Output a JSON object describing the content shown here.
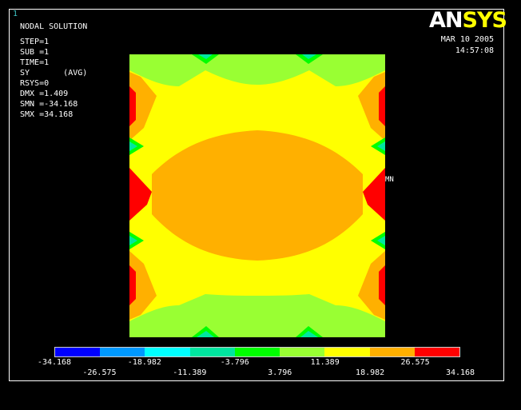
{
  "window_number": "1",
  "info": {
    "title": "NODAL SOLUTION",
    "step": "STEP=1",
    "sub": "SUB =1",
    "time": "TIME=1",
    "component": "SY       (AVG)",
    "rsys": "RSYS=0",
    "dmx": "DMX =1.409",
    "smn": "SMN =-34.168",
    "smx": "SMX =34.168"
  },
  "logo": {
    "part1": "AN",
    "part2": "SYS"
  },
  "date": "MAR 10 2005",
  "time_of_day": "14:57:08",
  "mn_label": "MN",
  "legend": {
    "colors": [
      "#0000ff",
      "#0099ff",
      "#00ffff",
      "#00e6a0",
      "#00ff00",
      "#99ff33",
      "#ffff00",
      "#ffb000",
      "#ff0000"
    ],
    "labels_top": [
      "-34.168",
      "-18.982",
      "-3.796",
      "11.389",
      "26.575"
    ],
    "labels_bottom": [
      "-26.575",
      "-11.389",
      "3.796",
      "18.982",
      "34.168"
    ]
  },
  "palette": {
    "orange": "#ffb000",
    "yellow": "#ffff00",
    "lime": "#99ff33",
    "green": "#00ff00",
    "teal": "#00e6a0",
    "cyan": "#00ffff",
    "red": "#ff0000"
  }
}
